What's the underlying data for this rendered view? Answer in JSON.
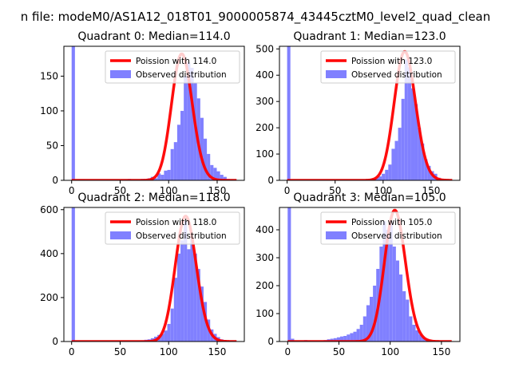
{
  "figure": {
    "suptitle": "n file: modeM0/AS1A12_018T01_9000005874_43445cztM0_level2_quad_clean"
  },
  "colors": {
    "observed_fill": "#8080ff",
    "poisson_line": "#ff0000",
    "axes": "#000000",
    "background": "#ffffff"
  },
  "chart_data": [
    {
      "type": "bar",
      "title": "Quadrant 0: Median=114.0",
      "xlim": [
        -8,
        178
      ],
      "ylim": [
        0,
        193
      ],
      "xticks": [
        0,
        50,
        100,
        150
      ],
      "yticks": [
        0,
        50,
        100,
        150
      ],
      "legend": {
        "position": "top-right",
        "entries": [
          "Poission with 114.0",
          "Observed distribution"
        ]
      },
      "series": [
        {
          "name": "Observed distribution",
          "kind": "histogram",
          "bin_edges": [
            0,
            3.4,
            6.8,
            10.2,
            13.6,
            17,
            20.4,
            23.8,
            27.2,
            30.6,
            34,
            37.4,
            40.8,
            44.2,
            47.6,
            51,
            54.4,
            57.8,
            61.2,
            64.6,
            68,
            71.4,
            74.8,
            78.2,
            81.6,
            85,
            88.4,
            91.8,
            95.2,
            98.6,
            102,
            105.4,
            108.8,
            112.2,
            115.6,
            119,
            122.4,
            125.8,
            129.2,
            132.6,
            136,
            139.4,
            142.8,
            146.2,
            149.6,
            153,
            156.4,
            159.8,
            163.2,
            166.6,
            170
          ],
          "counts": [
            200,
            0,
            1,
            1,
            0,
            0,
            0,
            0,
            0,
            0,
            0,
            0,
            0,
            0,
            0,
            0,
            1,
            2,
            0,
            0,
            0,
            2,
            1,
            3,
            5,
            3,
            10,
            8,
            14,
            15,
            45,
            55,
            80,
            100,
            150,
            170,
            162,
            140,
            118,
            90,
            60,
            38,
            22,
            18,
            13,
            8,
            5,
            2,
            1,
            0
          ]
        },
        {
          "name": "Poission with 114.0",
          "kind": "poisson_curve",
          "mean": 114.0,
          "peak": 182
        }
      ]
    },
    {
      "type": "bar",
      "title": "Quadrant 1: Median=123.0",
      "xlim": [
        -8,
        180
      ],
      "ylim": [
        0,
        510
      ],
      "xticks": [
        0,
        50,
        100,
        150
      ],
      "yticks": [
        0,
        100,
        200,
        300,
        400,
        500
      ],
      "legend": {
        "position": "top-right",
        "entries": [
          "Poission with 123.0",
          "Observed distribution"
        ]
      },
      "series": [
        {
          "name": "Observed distribution",
          "kind": "histogram",
          "bin_edges": [
            0,
            3.4,
            6.8,
            10.2,
            13.6,
            17,
            20.4,
            23.8,
            27.2,
            30.6,
            34,
            37.4,
            40.8,
            44.2,
            47.6,
            51,
            54.4,
            57.8,
            61.2,
            64.6,
            68,
            71.4,
            74.8,
            78.2,
            81.6,
            85,
            88.4,
            91.8,
            95.2,
            98.6,
            102,
            105.4,
            108.8,
            112.2,
            115.6,
            119,
            122.4,
            125.8,
            129.2,
            132.6,
            136,
            139.4,
            142.8,
            146.2,
            149.6,
            153,
            156.4,
            159.8,
            163.2,
            166.6,
            170
          ],
          "counts": [
            520,
            0,
            0,
            0,
            0,
            0,
            0,
            0,
            0,
            0,
            0,
            0,
            0,
            0,
            0,
            0,
            0,
            0,
            0,
            0,
            0,
            0,
            0,
            2,
            3,
            5,
            8,
            10,
            15,
            25,
            40,
            60,
            120,
            150,
            200,
            310,
            460,
            430,
            350,
            290,
            200,
            140,
            80,
            55,
            35,
            25,
            10,
            5,
            2,
            1
          ]
        },
        {
          "name": "Poission with 123.0",
          "kind": "poisson_curve",
          "mean": 123.0,
          "peak": 490
        }
      ]
    },
    {
      "type": "bar",
      "title": "Quadrant 2: Median=118.0",
      "xlim": [
        -8,
        178
      ],
      "ylim": [
        0,
        610
      ],
      "xticks": [
        0,
        50,
        100,
        150
      ],
      "yticks": [
        0,
        200,
        400,
        600
      ],
      "legend": {
        "position": "top-right",
        "entries": [
          "Poission with 118.0",
          "Observed distribution"
        ]
      },
      "series": [
        {
          "name": "Observed distribution",
          "kind": "histogram",
          "bin_edges": [
            0,
            3.4,
            6.8,
            10.2,
            13.6,
            17,
            20.4,
            23.8,
            27.2,
            30.6,
            34,
            37.4,
            40.8,
            44.2,
            47.6,
            51,
            54.4,
            57.8,
            61.2,
            64.6,
            68,
            71.4,
            74.8,
            78.2,
            81.6,
            85,
            88.4,
            91.8,
            95.2,
            98.6,
            102,
            105.4,
            108.8,
            112.2,
            115.6,
            119,
            122.4,
            125.8,
            129.2,
            132.6,
            136,
            139.4,
            142.8,
            146.2,
            149.6,
            153,
            156.4,
            159.8,
            163.2,
            166.6,
            170
          ],
          "counts": [
            640,
            0,
            0,
            0,
            0,
            0,
            0,
            0,
            0,
            0,
            0,
            0,
            0,
            0,
            0,
            0,
            0,
            0,
            0,
            0,
            3,
            5,
            8,
            10,
            15,
            22,
            30,
            35,
            50,
            80,
            150,
            290,
            400,
            460,
            550,
            420,
            470,
            400,
            330,
            250,
            180,
            100,
            55,
            35,
            20,
            10,
            5,
            2,
            1,
            0
          ]
        },
        {
          "name": "Poission with 118.0",
          "kind": "poisson_curve",
          "mean": 118.0,
          "peak": 570
        }
      ]
    },
    {
      "type": "bar",
      "title": "Quadrant 3: Median=105.0",
      "xlim": [
        -8,
        168
      ],
      "ylim": [
        0,
        480
      ],
      "xticks": [
        0,
        50,
        100,
        150
      ],
      "yticks": [
        0,
        100,
        200,
        300,
        400
      ],
      "legend": {
        "position": "top-right",
        "entries": [
          "Poission with 105.0",
          "Observed distribution"
        ]
      },
      "series": [
        {
          "name": "Observed distribution",
          "kind": "histogram",
          "bin_edges": [
            0,
            3.2,
            6.4,
            9.6,
            12.8,
            16,
            19.2,
            22.4,
            25.6,
            28.8,
            32,
            35.2,
            38.4,
            41.6,
            44.8,
            48,
            51.2,
            54.4,
            57.6,
            60.8,
            64,
            67.2,
            70.4,
            73.6,
            76.8,
            80,
            83.2,
            86.4,
            89.6,
            92.8,
            96,
            99.2,
            102.4,
            105.6,
            108.8,
            112,
            115.2,
            118.4,
            121.6,
            124.8,
            128,
            131.2,
            134.4,
            137.6,
            140.8,
            144,
            147.2,
            150.4,
            153.6,
            156.8,
            160
          ],
          "counts": [
            500,
            10,
            0,
            0,
            0,
            5,
            3,
            0,
            0,
            0,
            2,
            5,
            8,
            10,
            12,
            15,
            18,
            20,
            25,
            30,
            35,
            45,
            60,
            90,
            130,
            160,
            200,
            260,
            340,
            430,
            400,
            430,
            340,
            290,
            240,
            180,
            150,
            90,
            60,
            40,
            25,
            15,
            10,
            5,
            3,
            2,
            1,
            0,
            0,
            0
          ]
        },
        {
          "name": "Poission with 105.0",
          "kind": "poisson_curve",
          "mean": 105.0,
          "peak": 470
        }
      ]
    }
  ]
}
